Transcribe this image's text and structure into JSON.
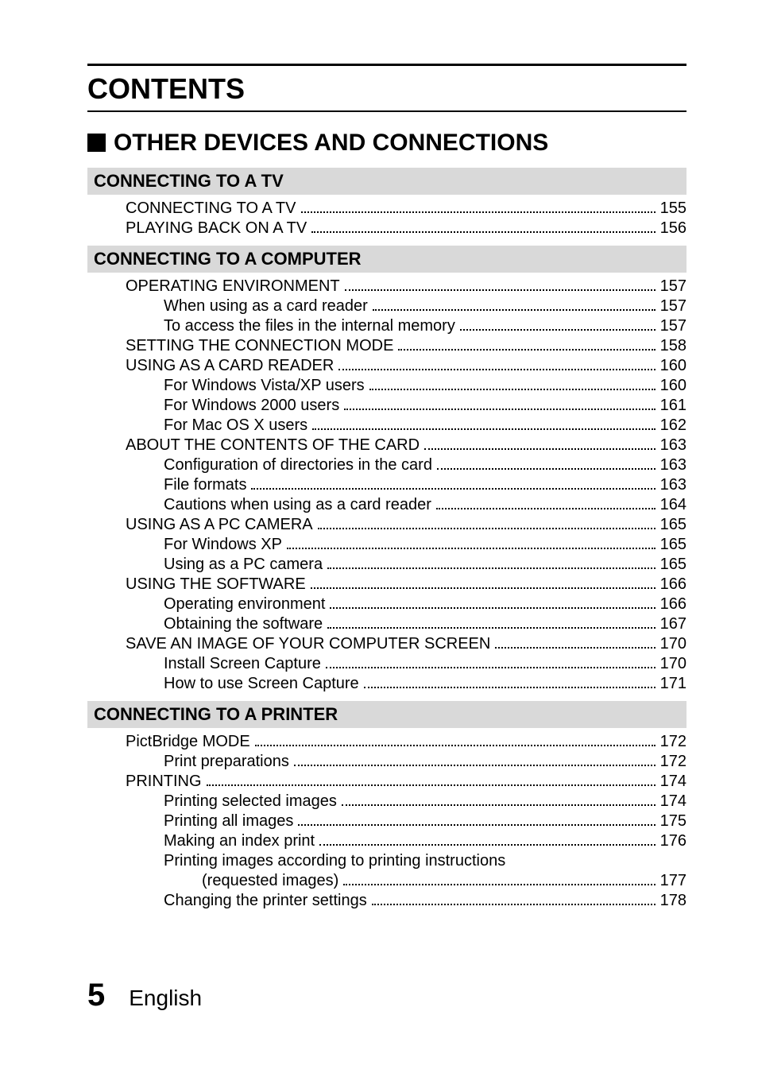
{
  "title": "CONTENTS",
  "section_title": "OTHER DEVICES AND CONNECTIONS",
  "sections": [
    {
      "header": "CONNECTING TO A TV",
      "items": [
        {
          "level": 1,
          "label": "CONNECTING TO A TV",
          "page": "155"
        },
        {
          "level": 1,
          "label": "PLAYING BACK ON A TV",
          "page": "156"
        }
      ]
    },
    {
      "header": "CONNECTING TO A COMPUTER",
      "items": [
        {
          "level": 1,
          "label": "OPERATING ENVIRONMENT",
          "page": "157"
        },
        {
          "level": 2,
          "label": "When using as a card reader",
          "page": "157"
        },
        {
          "level": 2,
          "label": "To access the files in the internal memory",
          "page": "157"
        },
        {
          "level": 1,
          "label": "SETTING THE CONNECTION MODE",
          "page": "158"
        },
        {
          "level": 1,
          "label": "USING AS A CARD READER",
          "page": "160"
        },
        {
          "level": 2,
          "label": "For Windows Vista/XP users",
          "page": "160"
        },
        {
          "level": 2,
          "label": "For Windows 2000 users",
          "page": "161"
        },
        {
          "level": 2,
          "label": "For Mac OS X users",
          "page": "162"
        },
        {
          "level": 1,
          "label": "ABOUT THE CONTENTS OF THE CARD",
          "page": "163"
        },
        {
          "level": 2,
          "label": "Configuration of directories in the card",
          "page": "163"
        },
        {
          "level": 2,
          "label": "File formats",
          "page": "163"
        },
        {
          "level": 2,
          "label": "Cautions when using as a card reader",
          "page": "164"
        },
        {
          "level": 1,
          "label": "USING AS A PC CAMERA",
          "page": "165"
        },
        {
          "level": 2,
          "label": "For Windows XP",
          "page": "165"
        },
        {
          "level": 2,
          "label": "Using as a PC camera",
          "page": "165"
        },
        {
          "level": 1,
          "label": "USING THE SOFTWARE",
          "page": "166"
        },
        {
          "level": 2,
          "label": "Operating environment",
          "page": "166"
        },
        {
          "level": 2,
          "label": "Obtaining the software",
          "page": "167"
        },
        {
          "level": 1,
          "label": "SAVE AN IMAGE OF YOUR COMPUTER SCREEN",
          "page": "170"
        },
        {
          "level": 2,
          "label": "Install Screen Capture",
          "page": "170"
        },
        {
          "level": 2,
          "label": "How to use Screen Capture",
          "page": "171"
        }
      ]
    },
    {
      "header": "CONNECTING TO A PRINTER",
      "items": [
        {
          "level": 1,
          "label": "PictBridge MODE",
          "page": "172"
        },
        {
          "level": 2,
          "label": "Print preparations",
          "page": "172"
        },
        {
          "level": 1,
          "label": "PRINTING",
          "page": "174"
        },
        {
          "level": 2,
          "label": "Printing selected images",
          "page": "174"
        },
        {
          "level": 2,
          "label": "Printing all images",
          "page": "175"
        },
        {
          "level": 2,
          "label": "Making an index print",
          "page": "176"
        },
        {
          "level": 2,
          "label": "Printing images according to printing instructions",
          "wrap": true
        },
        {
          "level": 3,
          "label": "(requested images)",
          "page": "177"
        },
        {
          "level": 2,
          "label": "Changing the printer settings",
          "page": "178"
        }
      ]
    }
  ],
  "footer": {
    "page": "5",
    "lang": "English"
  }
}
